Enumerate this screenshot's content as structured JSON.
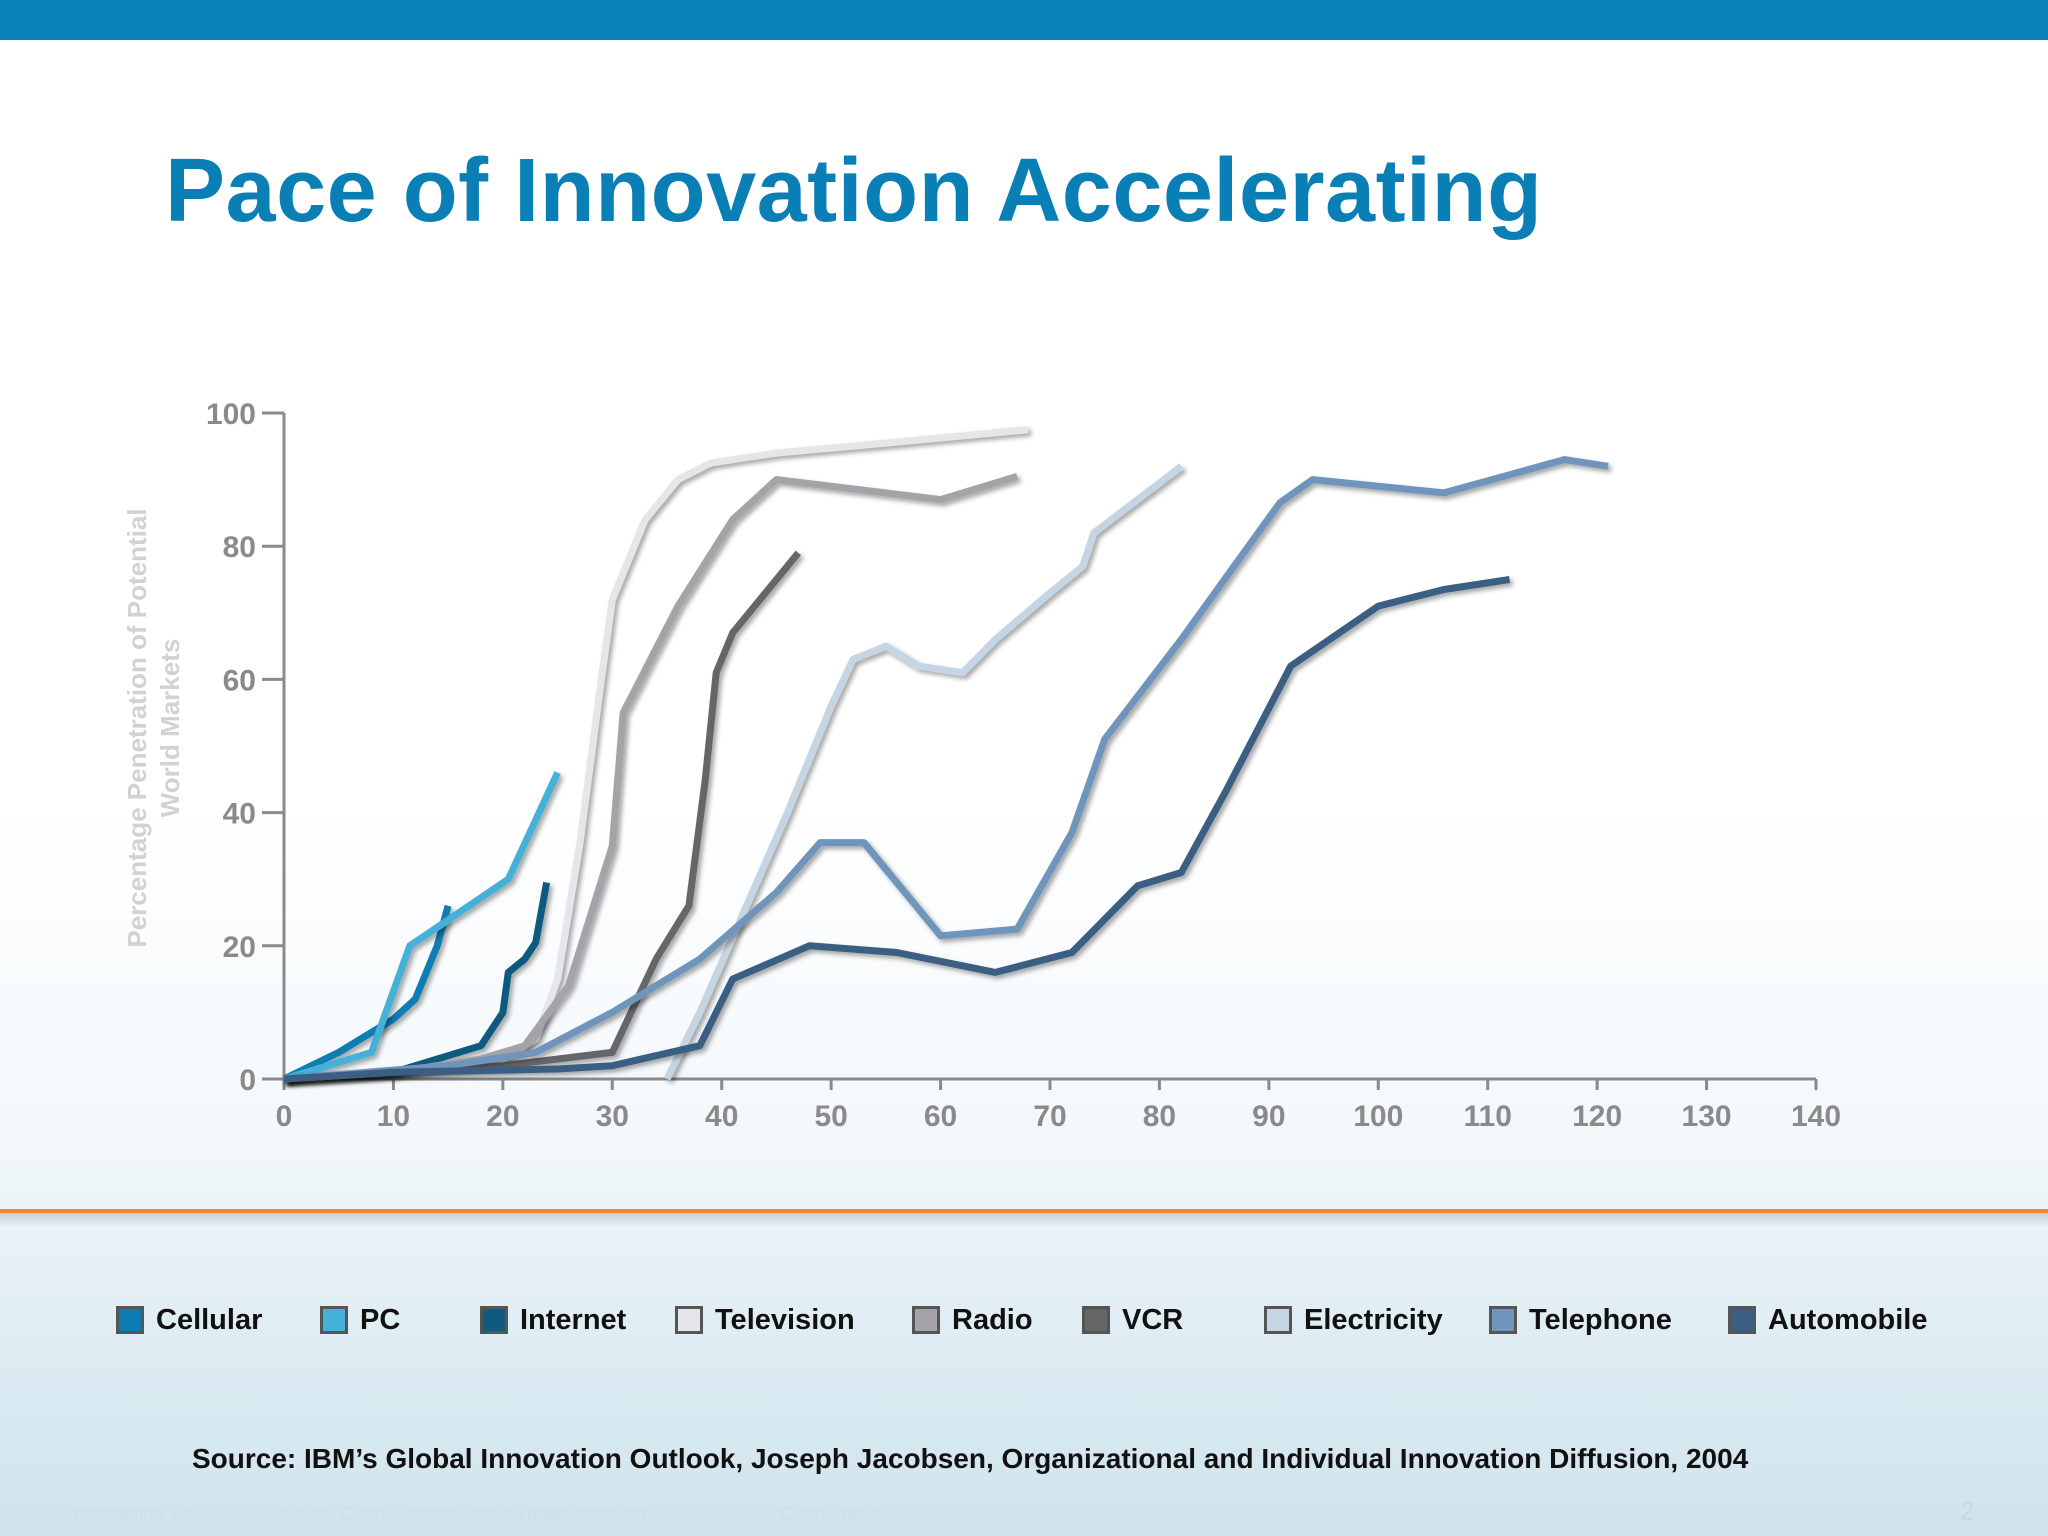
{
  "title": "Pace of Innovation Accelerating",
  "source": "Source: IBM’s Global Innovation Outlook, Joseph Jacobsen, Organizational and Individual Innovation Diffusion, 2004",
  "footer": {
    "presentation_id": "Presentation_ID",
    "copyright": "© 2009 Cisco Systems, Inc. All rights reserved.",
    "classification": "Cisco Public",
    "page_number": "2"
  },
  "colors": {
    "brand_blue": "#0882b8",
    "title_blue": "#0a7fb5",
    "divider_orange": "#ef8a3b",
    "axis_gray": "#8a8a8a"
  },
  "chart_data": {
    "type": "line",
    "title": "",
    "xlabel": "",
    "ylabel": "Percentage Penetration of Potential World Markets",
    "ylabel_lines": [
      "Percentage Penetration of Potential",
      "World Markets"
    ],
    "xlim": [
      0,
      140
    ],
    "ylim": [
      0,
      100
    ],
    "x_ticks": [
      0,
      10,
      20,
      30,
      40,
      50,
      60,
      70,
      80,
      90,
      100,
      110,
      120,
      130,
      140
    ],
    "y_ticks": [
      0,
      20,
      40,
      60,
      80,
      100
    ],
    "grid": false,
    "legend_position": "bottom",
    "series": [
      {
        "name": "Cellular",
        "color": "#0a7db3",
        "points": [
          [
            0,
            0
          ],
          [
            5,
            4
          ],
          [
            8,
            7
          ],
          [
            10,
            9
          ],
          [
            12,
            12
          ],
          [
            14,
            20
          ],
          [
            15,
            26
          ]
        ]
      },
      {
        "name": "PC",
        "color": "#45b1d9",
        "points": [
          [
            0,
            0
          ],
          [
            4,
            2
          ],
          [
            8,
            4
          ],
          [
            11.5,
            20
          ],
          [
            16,
            25
          ],
          [
            20.5,
            30
          ],
          [
            25,
            46
          ]
        ]
      },
      {
        "name": "Internet",
        "color": "#0f5a7e",
        "points": [
          [
            0,
            0
          ],
          [
            10,
            1
          ],
          [
            18,
            5
          ],
          [
            20,
            10
          ],
          [
            20.5,
            16
          ],
          [
            22,
            18
          ],
          [
            23,
            20.5
          ],
          [
            24,
            29.5
          ]
        ]
      },
      {
        "name": "Television",
        "color": "#e6e6ea",
        "points": [
          [
            0,
            0
          ],
          [
            10,
            1
          ],
          [
            20,
            3
          ],
          [
            23,
            6
          ],
          [
            25,
            15
          ],
          [
            27,
            35
          ],
          [
            29,
            60
          ],
          [
            30,
            72
          ],
          [
            33,
            84
          ],
          [
            36,
            90
          ],
          [
            39,
            92.5
          ],
          [
            45,
            94
          ],
          [
            55,
            95.5
          ],
          [
            68,
            97.5
          ]
        ]
      },
      {
        "name": "Radio",
        "color": "#a3a3a8",
        "points": [
          [
            0,
            0
          ],
          [
            10,
            1
          ],
          [
            18,
            3
          ],
          [
            22,
            5
          ],
          [
            26,
            14
          ],
          [
            30,
            35
          ],
          [
            31,
            55
          ],
          [
            36,
            71
          ],
          [
            41,
            84
          ],
          [
            45,
            90
          ],
          [
            60,
            87
          ],
          [
            67,
            90.5
          ]
        ]
      },
      {
        "name": "VCR",
        "color": "#666669",
        "points": [
          [
            0,
            0
          ],
          [
            10,
            1
          ],
          [
            20,
            2
          ],
          [
            30,
            4
          ],
          [
            34,
            18
          ],
          [
            37,
            26
          ],
          [
            38.5,
            45
          ],
          [
            39.5,
            61
          ],
          [
            41,
            67
          ],
          [
            47,
            79
          ]
        ]
      },
      {
        "name": "Electricity",
        "color": "#c6d5e3",
        "points": [
          [
            35,
            0
          ],
          [
            38,
            10
          ],
          [
            42,
            25
          ],
          [
            46,
            40
          ],
          [
            50,
            56
          ],
          [
            52,
            63
          ],
          [
            55,
            65
          ],
          [
            58,
            62
          ],
          [
            62,
            61
          ],
          [
            65,
            66
          ],
          [
            70,
            73
          ],
          [
            73,
            77
          ],
          [
            74,
            82
          ],
          [
            78,
            87
          ],
          [
            82,
            92
          ]
        ]
      },
      {
        "name": "Telephone",
        "color": "#6f95bd",
        "points": [
          [
            0,
            0
          ],
          [
            15,
            2
          ],
          [
            23,
            4
          ],
          [
            30,
            10
          ],
          [
            38,
            18
          ],
          [
            45,
            28
          ],
          [
            49,
            35.5
          ],
          [
            53,
            35.5
          ],
          [
            60,
            21.5
          ],
          [
            67,
            22.5
          ],
          [
            72,
            37
          ],
          [
            75,
            51
          ],
          [
            82,
            66
          ],
          [
            91,
            86.5
          ],
          [
            94,
            90
          ],
          [
            106,
            88
          ],
          [
            117,
            93
          ],
          [
            121,
            92
          ]
        ]
      },
      {
        "name": "Automobile",
        "color": "#3b5e83",
        "points": [
          [
            0,
            0
          ],
          [
            10,
            1
          ],
          [
            25,
            1.5
          ],
          [
            30,
            2
          ],
          [
            38,
            5
          ],
          [
            41,
            15
          ],
          [
            48,
            20
          ],
          [
            56,
            19
          ],
          [
            65,
            16
          ],
          [
            72,
            19
          ],
          [
            78,
            29
          ],
          [
            82,
            31
          ],
          [
            86,
            43
          ],
          [
            92,
            62
          ],
          [
            100,
            71
          ],
          [
            106,
            73.5
          ],
          [
            112,
            75
          ]
        ]
      }
    ]
  }
}
